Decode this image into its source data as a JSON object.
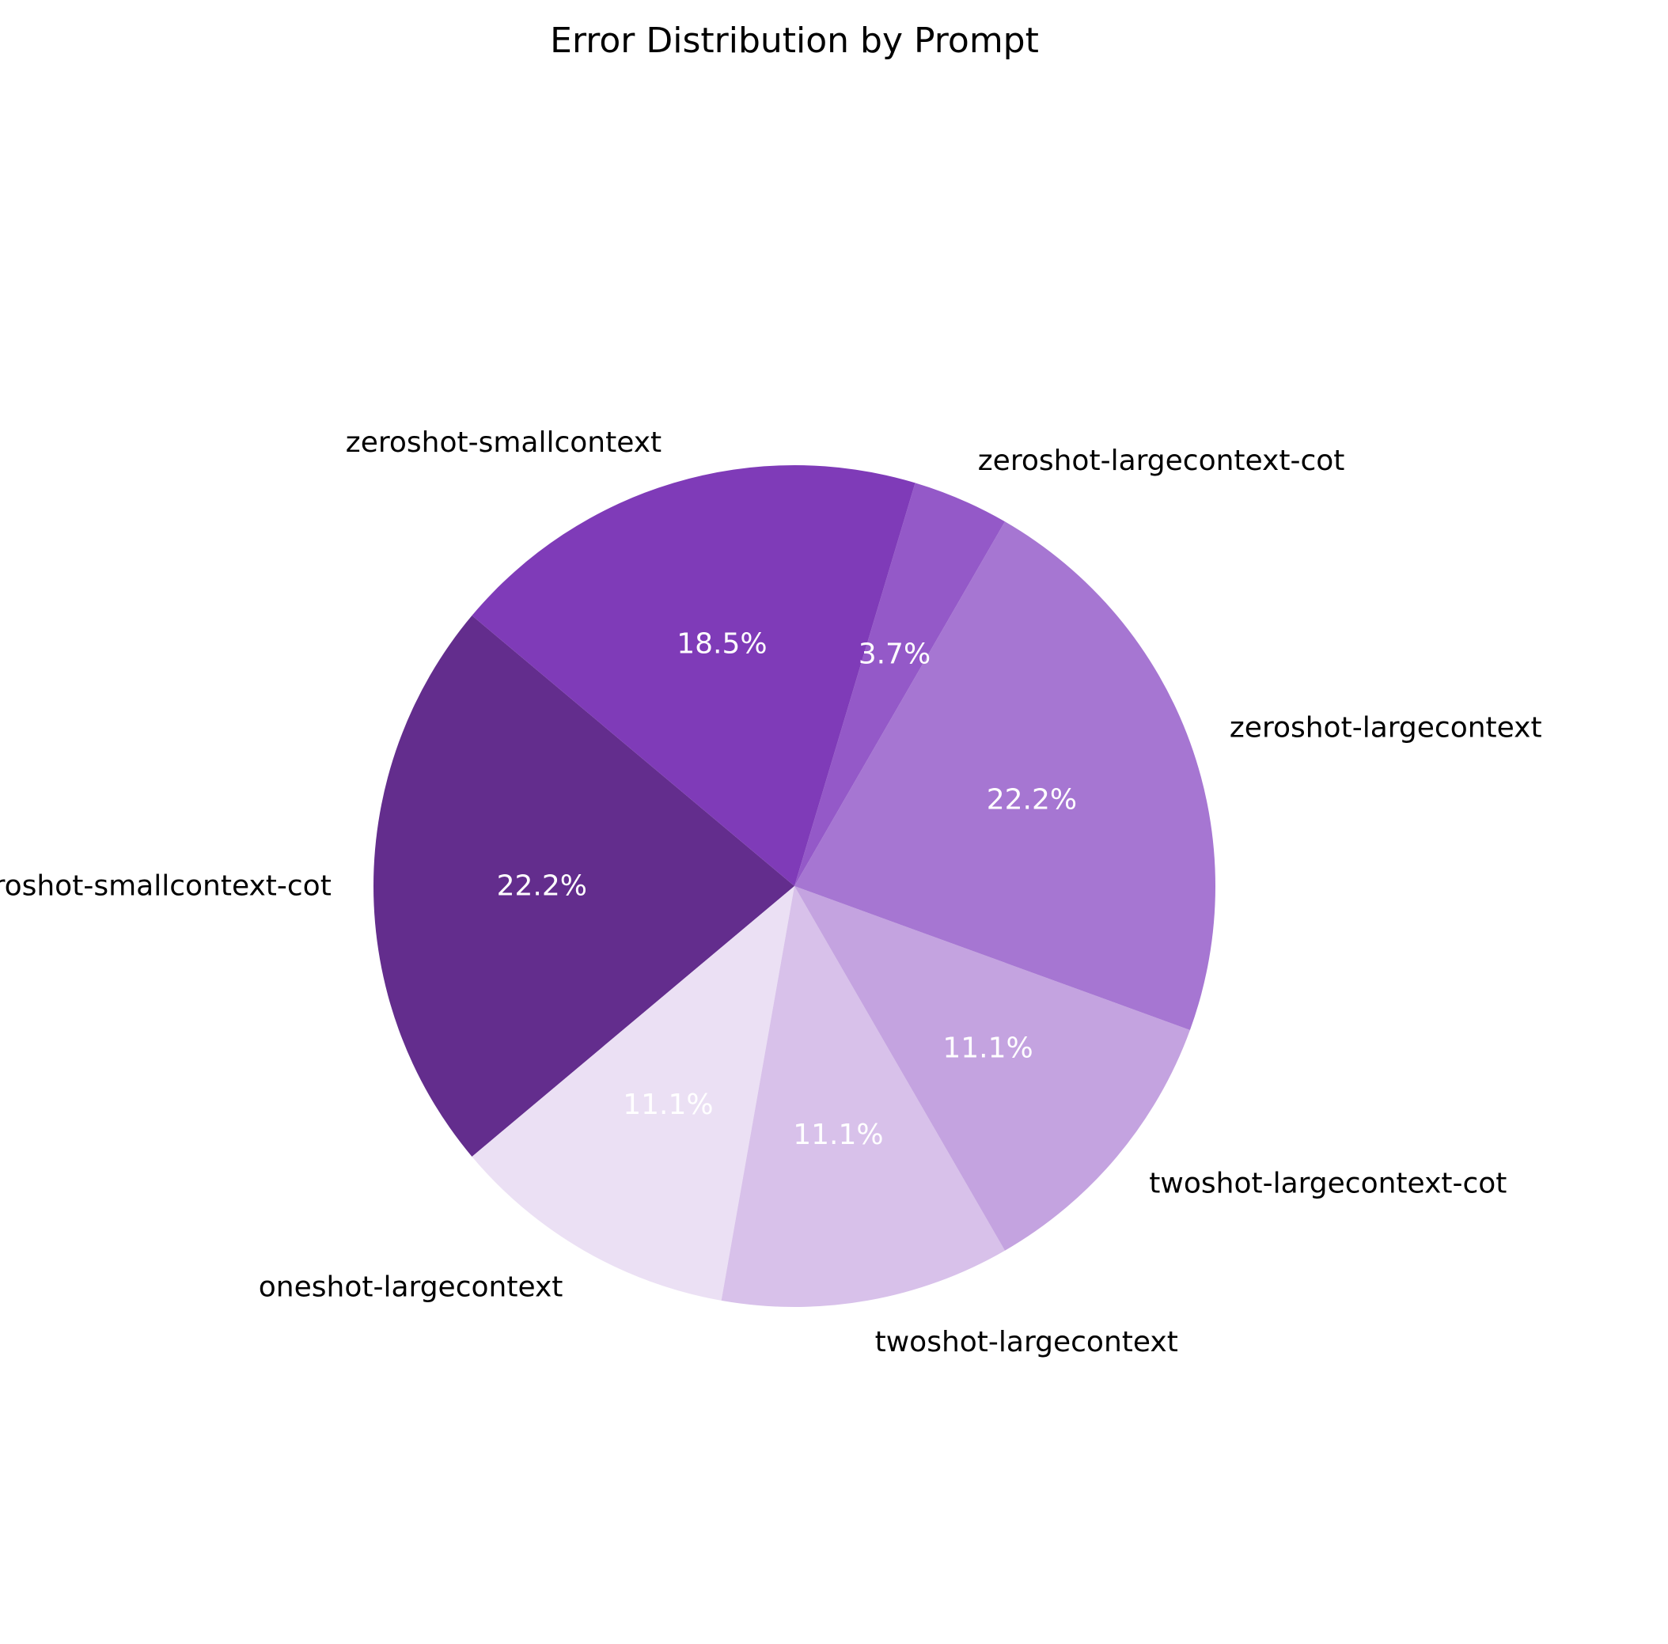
{
  "chart_data": {
    "type": "pie",
    "title": "Error Distribution by Prompt",
    "start_angle_deg": 140,
    "direction": "counterclockwise",
    "slices": [
      {
        "label": "zeroshot-smallcontext-cot",
        "value": 22.2,
        "pct_label": "22.2%",
        "color": "#632d8d"
      },
      {
        "label": "oneshot-largecontext",
        "value": 11.1,
        "pct_label": "11.1%",
        "color": "#ebe0f4"
      },
      {
        "label": "twoshot-largecontext",
        "value": 11.1,
        "pct_label": "11.1%",
        "color": "#d8c1ea"
      },
      {
        "label": "twoshot-largecontext-cot",
        "value": 11.1,
        "pct_label": "11.1%",
        "color": "#c4a3e0"
      },
      {
        "label": "zeroshot-largecontext",
        "value": 22.2,
        "pct_label": "22.2%",
        "color": "#a676d2"
      },
      {
        "label": "zeroshot-largecontext-cot",
        "value": 3.7,
        "pct_label": "3.7%",
        "color": "#9459c8"
      },
      {
        "label": "zeroshot-smallcontext",
        "value": 18.5,
        "pct_label": "18.5%",
        "color": "#7f3bb8"
      }
    ]
  }
}
